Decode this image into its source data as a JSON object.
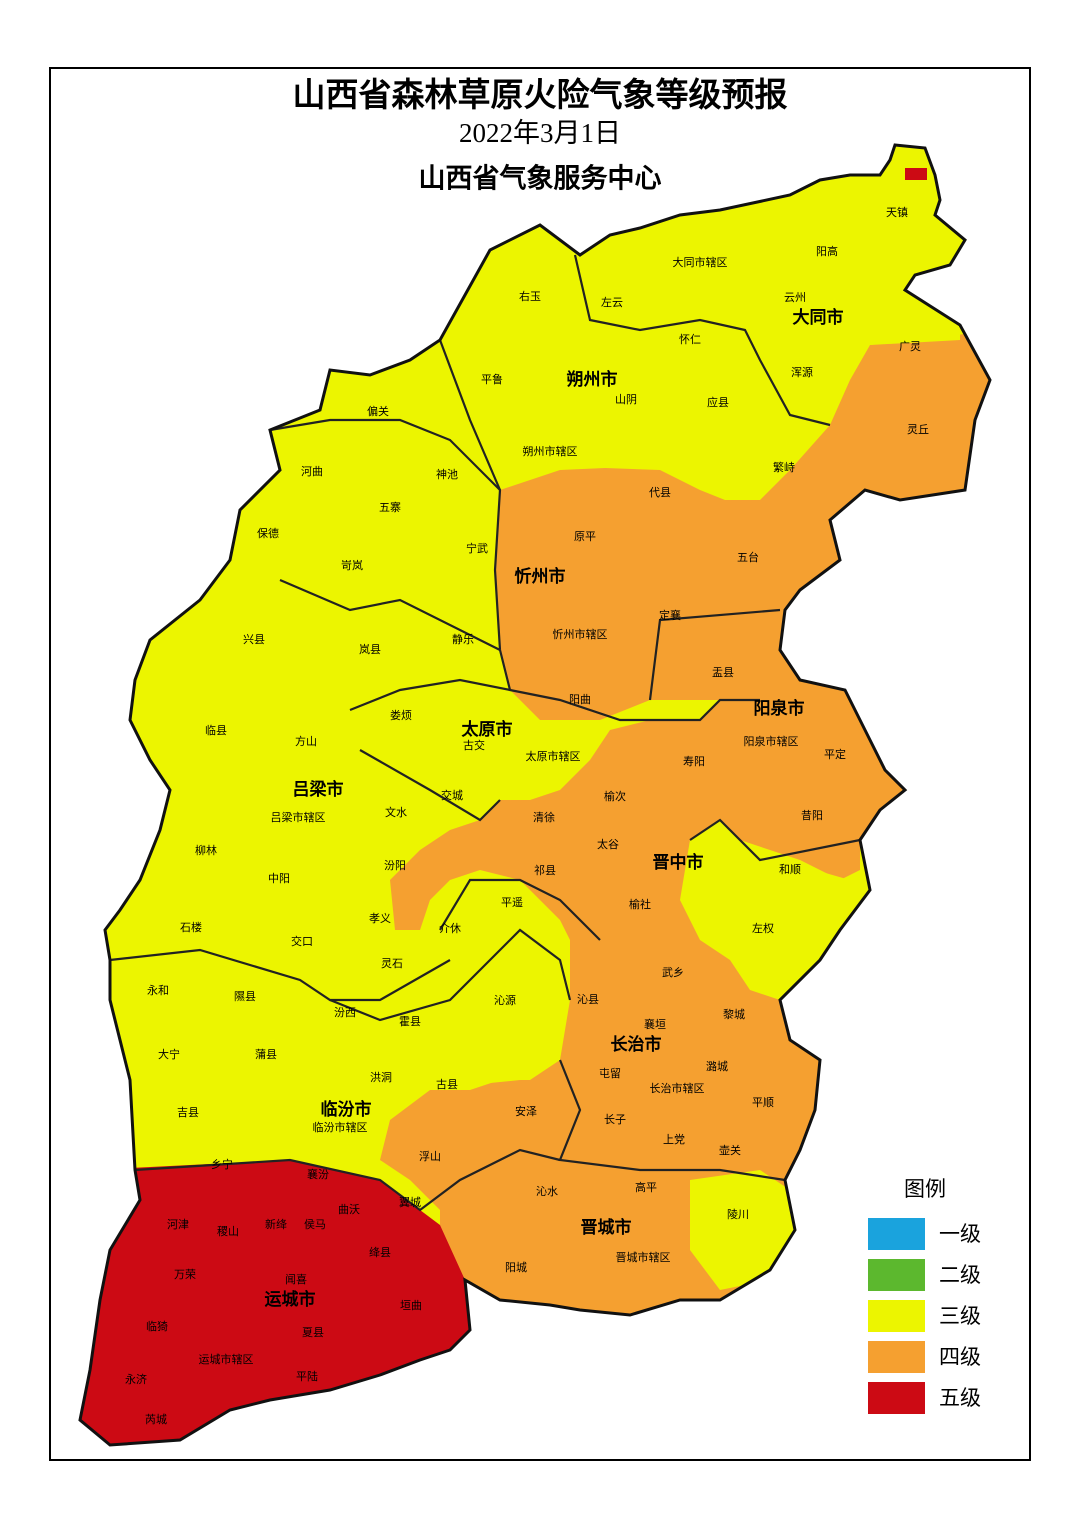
{
  "header": {
    "title": "山西省森林草原火险气象等级预报",
    "date": "2022年3月1日",
    "issuer": "山西省气象服务中心"
  },
  "map": {
    "city_labels": [
      "大同市",
      "朔州市",
      "忻州市",
      "太原市",
      "阳泉市",
      "吕梁市",
      "晋中市",
      "长治市",
      "临汾市",
      "晋城市",
      "运城市"
    ],
    "county_labels": [
      "天镇",
      "阳高",
      "大同市辖区",
      "右玉",
      "左云",
      "云州",
      "怀仁",
      "广灵",
      "浑源",
      "平鲁",
      "山阴",
      "应县",
      "偏关",
      "灵丘",
      "朔州市辖区",
      "河曲",
      "神池",
      "繁峙",
      "代县",
      "五寨",
      "保德",
      "原平",
      "五台",
      "宁武",
      "岢岚",
      "静乐",
      "定襄",
      "忻州市辖区",
      "兴县",
      "岚县",
      "盂县",
      "阳曲",
      "娄烦",
      "临县",
      "方山",
      "古交",
      "太原市辖区",
      "阳泉市辖区",
      "平定",
      "寿阳",
      "交城",
      "榆次",
      "吕梁市辖区",
      "文水",
      "清徐",
      "昔阳",
      "太谷",
      "柳林",
      "祁县",
      "中阳",
      "汾阳",
      "和顺",
      "平遥",
      "榆社",
      "石楼",
      "孝义",
      "介休",
      "左权",
      "交口",
      "灵石",
      "武乡",
      "永和",
      "隰县",
      "沁县",
      "沁源",
      "黎城",
      "汾西",
      "霍县",
      "襄垣",
      "大宁",
      "蒲县",
      "屯留",
      "潞城",
      "洪洞",
      "古县",
      "长治市辖区",
      "吉县",
      "安泽",
      "平顺",
      "长子",
      "临汾市辖区",
      "浮山",
      "上党",
      "壶关",
      "乡宁",
      "襄汾",
      "沁水",
      "高平",
      "翼城",
      "曲沃",
      "河津",
      "稷山",
      "新绛",
      "侯马",
      "陵川",
      "绛县",
      "万荣",
      "闻喜",
      "阳城",
      "晋城市辖区",
      "垣曲",
      "临猗",
      "夏县",
      "运城市辖区",
      "永济",
      "平陆",
      "芮城"
    ]
  },
  "legend": {
    "title": "图例",
    "items": [
      {
        "label": "一级",
        "color": "#1aa3dd"
      },
      {
        "label": "二级",
        "color": "#5cb82e"
      },
      {
        "label": "三级",
        "color": "#ecf500"
      },
      {
        "label": "四级",
        "color": "#f5a030"
      },
      {
        "label": "五级",
        "color": "#cc0a14"
      }
    ]
  }
}
